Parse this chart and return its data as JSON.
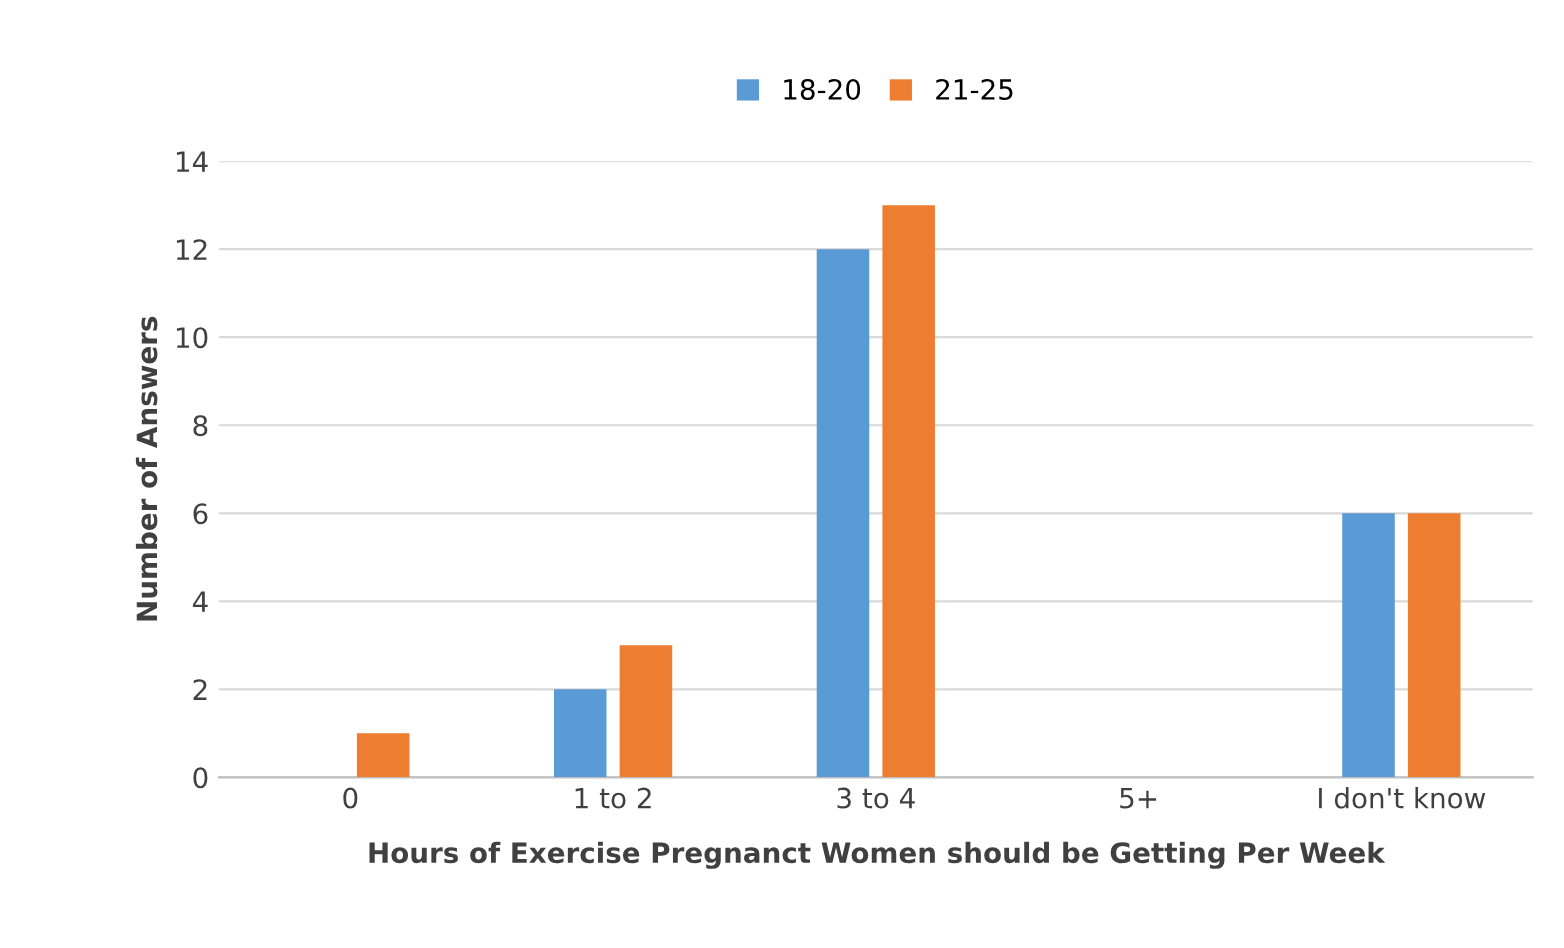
{
  "chart_data": {
    "type": "bar",
    "xlabel": "Hours of Exercise Pregnanct Women should be Getting Per Week",
    "ylabel": "Number of Answers",
    "categories": [
      "0",
      "1 to 2",
      "3 to 4",
      "5+",
      "I don't know"
    ],
    "series": [
      {
        "name": "18-20",
        "color": "#5b9bd5",
        "values": [
          0,
          2,
          12,
          0,
          6
        ]
      },
      {
        "name": "21-25",
        "color": "#ed7d31",
        "values": [
          1,
          3,
          13,
          0,
          6
        ]
      }
    ],
    "ylim": [
      0,
      14
    ],
    "yticks": [
      0,
      2,
      4,
      6,
      8,
      10,
      12,
      14
    ],
    "grid": "y",
    "legend": "top"
  }
}
